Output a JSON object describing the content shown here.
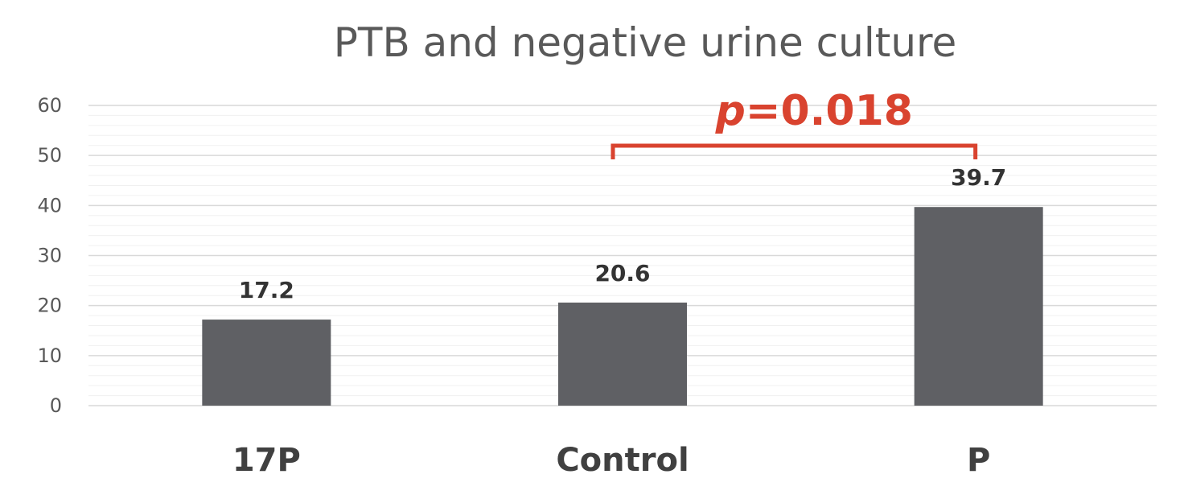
{
  "chart_data": {
    "type": "bar",
    "title": "PTB and negative urine culture",
    "categories": [
      "17P",
      "Control",
      "P"
    ],
    "series": [
      {
        "values": [
          17.2,
          20.6,
          39.7
        ],
        "data_labels": [
          "17.2",
          "20.6",
          "39.7"
        ]
      }
    ],
    "ylim": [
      0,
      60
    ],
    "yticks": [
      "0",
      "10",
      "20",
      "30",
      "40",
      "50",
      "60"
    ],
    "grid": true,
    "legend": "none",
    "bar_color": "#5f6064",
    "annotation": {
      "p_symbol": "p",
      "p_value": "=0.018",
      "between": [
        "Control",
        "P"
      ],
      "color": "#d9432f"
    }
  }
}
